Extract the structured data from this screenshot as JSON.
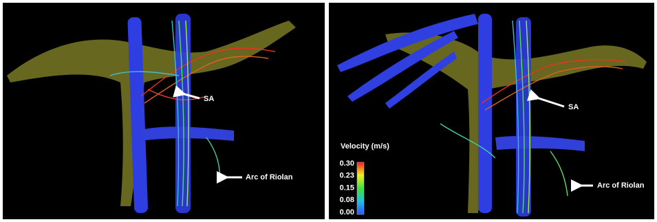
{
  "colorbar": {
    "title": "Velocity (m/s)",
    "ticks": [
      "0.30",
      "0.23",
      "0.15",
      "0.08",
      "0.00"
    ]
  },
  "left_panel": {
    "annotations": [
      "SA",
      "Arc of Riolan"
    ]
  },
  "right_panel": {
    "annotations": [
      "SA",
      "Arc of Riolan"
    ]
  }
}
